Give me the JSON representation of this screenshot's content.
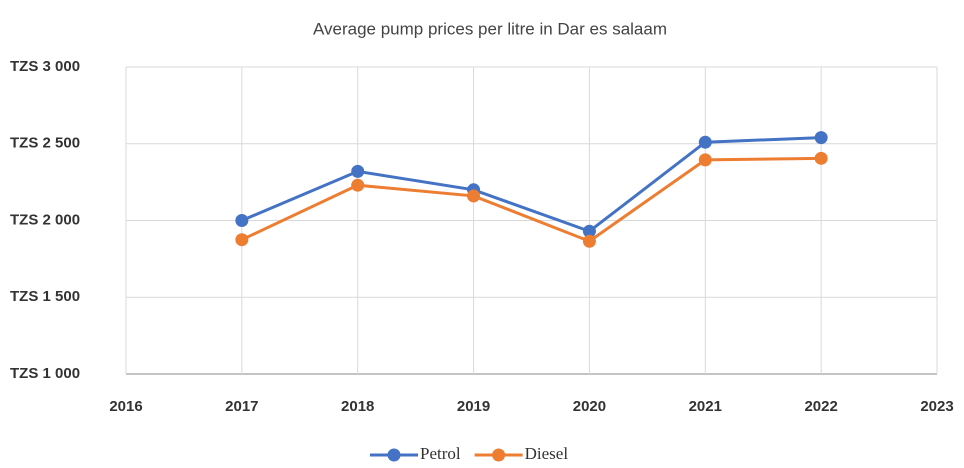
{
  "chart_data": {
    "type": "line",
    "title": "Average pump prices per litre in Dar es salaam",
    "x": [
      2017,
      2018,
      2019,
      2020,
      2021,
      2022
    ],
    "series": [
      {
        "name": "Petrol",
        "color": "#4472c4",
        "values": [
          2000,
          2320,
          2200,
          1930,
          2510,
          2540
        ]
      },
      {
        "name": "Diesel",
        "color": "#ed7d31",
        "values": [
          1875,
          2230,
          2160,
          1865,
          2395,
          2405
        ]
      }
    ],
    "xlim": [
      2016,
      2023
    ],
    "xticks": [
      2016,
      2017,
      2018,
      2019,
      2020,
      2021,
      2022,
      2023
    ],
    "ylim": [
      1000,
      3000
    ],
    "yticks": [
      {
        "value": 1000,
        "label": "TZS 1 000"
      },
      {
        "value": 1500,
        "label": "TZS 1 500"
      },
      {
        "value": 2000,
        "label": "TZS 2 000"
      },
      {
        "value": 2500,
        "label": "TZS 2 500"
      },
      {
        "value": 3000,
        "label": "TZS 3 000"
      }
    ],
    "grid": true,
    "legend": "bottom"
  }
}
